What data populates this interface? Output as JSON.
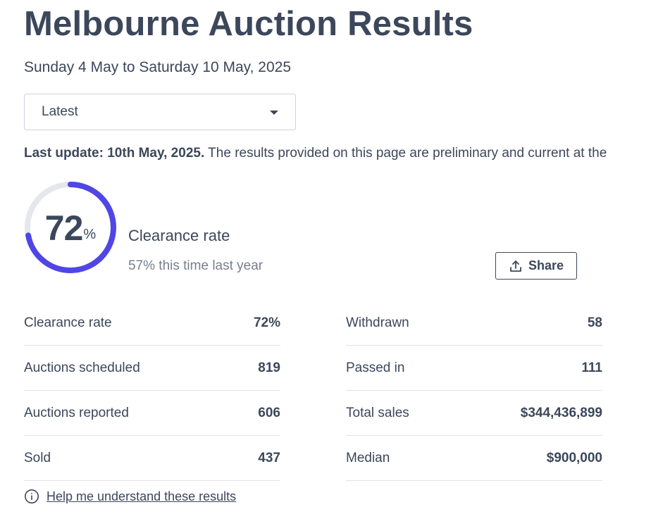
{
  "header": {
    "title": "Melbourne Auction Results",
    "date_range": "Sunday 4 May to Saturday 10 May, 2025"
  },
  "period_select": {
    "selected": "Latest",
    "icon": "chevron-down-icon"
  },
  "update": {
    "bold": "Last update: 10th May, 2025.",
    "text": " The results provided on this page are preliminary and current at the"
  },
  "clearance": {
    "value": "72",
    "unit": "%",
    "fraction": 0.72,
    "label": "Clearance rate",
    "last_year": "57% this time last year",
    "ring_color": "#4f46e5",
    "track_color": "#e5e7ec"
  },
  "share": {
    "label": "Share",
    "icon": "share-upload-icon"
  },
  "stats_left": [
    {
      "label": "Clearance rate",
      "value": "72%"
    },
    {
      "label": "Auctions scheduled",
      "value": "819"
    },
    {
      "label": "Auctions reported",
      "value": "606"
    },
    {
      "label": "Sold",
      "value": "437"
    }
  ],
  "stats_right": [
    {
      "label": "Withdrawn",
      "value": "58"
    },
    {
      "label": "Passed in",
      "value": "111"
    },
    {
      "label": "Total sales",
      "value": "$344,436,899"
    },
    {
      "label": "Median",
      "value": "$900,000"
    }
  ],
  "help": {
    "label": "Help me understand these results",
    "icon": "info-icon"
  },
  "colors": {
    "text": "#3c475b",
    "muted": "#77808f",
    "accent": "#4f46e5"
  }
}
